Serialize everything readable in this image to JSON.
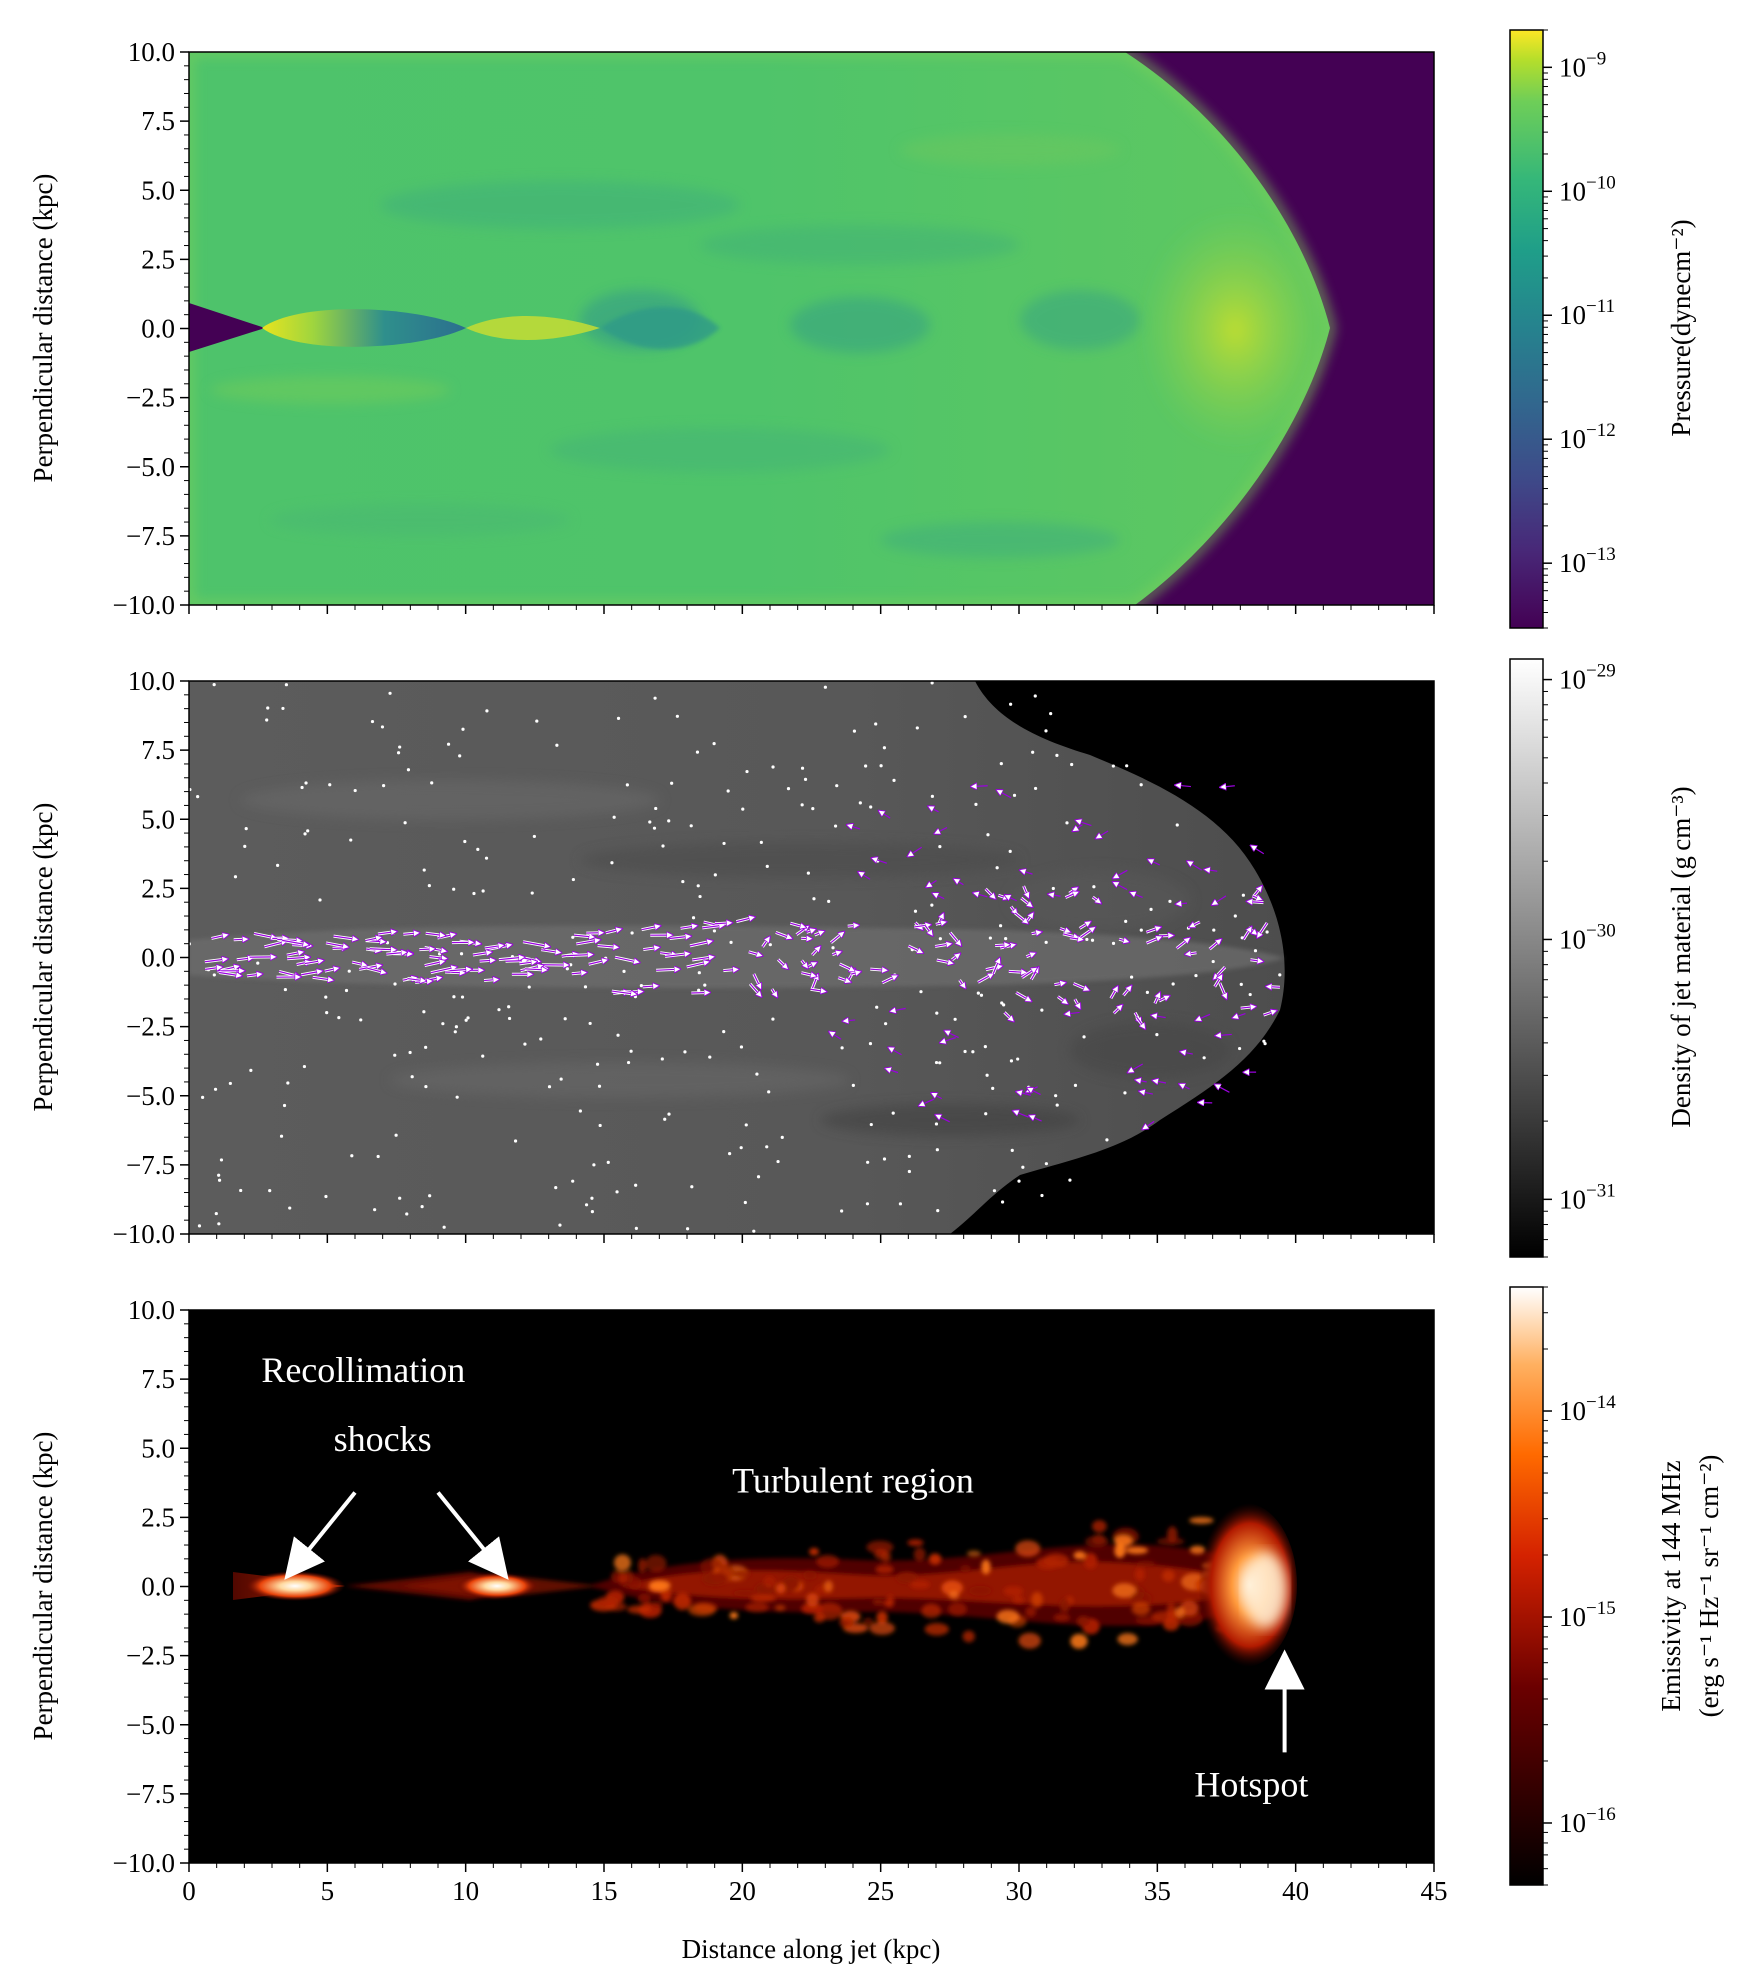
{
  "chart_data": [
    {
      "type": "heatmap",
      "panel": "pressure",
      "xlim": [
        0,
        45
      ],
      "ylim": [
        -10.0,
        10.0
      ],
      "ylabel": "Perpendicular distance (kpc)",
      "xlabel": "",
      "yticks": [
        "10.0",
        "7.5",
        "5.0",
        "2.5",
        "0.0",
        "−2.5",
        "−5.0",
        "−7.5",
        "−10.0"
      ],
      "ytick_values": [
        10,
        7.5,
        5,
        2.5,
        0,
        -2.5,
        -5,
        -7.5,
        -10
      ],
      "colorbar": {
        "label": "Pressure(dynecm⁻²)",
        "scale": "log",
        "colormap": "viridis",
        "range": [
          3e-14,
          2e-09
        ],
        "ticks": [
          {
            "base": "10",
            "exp": "−9",
            "value": 1e-09
          },
          {
            "base": "10",
            "exp": "−10",
            "value": 1e-10
          },
          {
            "base": "10",
            "exp": "−11",
            "value": 1e-11
          },
          {
            "base": "10",
            "exp": "−12",
            "value": 1e-12
          },
          {
            "base": "10",
            "exp": "−13",
            "value": 1e-13
          }
        ]
      },
      "features": {
        "bow_shock_tip_x": 41.3,
        "shock_front_top_x": 34.0,
        "shock_front_bottom_x": 34.0,
        "recollimation_shocks_x": [
          3.0,
          11.5
        ]
      }
    },
    {
      "type": "heatmap",
      "panel": "density",
      "xlim": [
        0,
        45
      ],
      "ylim": [
        -10.0,
        10.0
      ],
      "ylabel": "Perpendicular distance (kpc)",
      "xlabel": "",
      "yticks": [
        "10.0",
        "7.5",
        "5.0",
        "2.5",
        "0.0",
        "−2.5",
        "−5.0",
        "−7.5",
        "−10.0"
      ],
      "ytick_values": [
        10,
        7.5,
        5,
        2.5,
        0,
        -2.5,
        -5,
        -7.5,
        -10
      ],
      "colorbar": {
        "label": "Density of jet material (g cm⁻³)",
        "scale": "log",
        "colormap": "gray",
        "range": [
          6e-32,
          1.2e-29
        ],
        "ticks": [
          {
            "base": "10",
            "exp": "−29",
            "value": 1e-29
          },
          {
            "base": "10",
            "exp": "−30",
            "value": 1e-30
          },
          {
            "base": "10",
            "exp": "−31",
            "value": 1e-31
          }
        ]
      },
      "features": {
        "cocoon_extent_x": 40.0,
        "tracer_particles": "white dots",
        "velocity_vectors": "purple arrows"
      }
    },
    {
      "type": "heatmap",
      "panel": "emissivity",
      "xlim": [
        0,
        45
      ],
      "ylim": [
        -10.0,
        10.0
      ],
      "ylabel": "Perpendicular distance (kpc)",
      "xlabel": "Distance along jet (kpc)",
      "xticks": [
        "0",
        "5",
        "10",
        "15",
        "20",
        "25",
        "30",
        "35",
        "40",
        "45"
      ],
      "xtick_values": [
        0,
        5,
        10,
        15,
        20,
        25,
        30,
        35,
        40,
        45
      ],
      "yticks": [
        "10.0",
        "7.5",
        "5.0",
        "2.5",
        "0.0",
        "−2.5",
        "−5.0",
        "−7.5",
        "−10.0"
      ],
      "ytick_values": [
        10,
        7.5,
        5,
        2.5,
        0,
        -2.5,
        -5,
        -7.5,
        -10
      ],
      "colorbar": {
        "label_line1": "Emissivity at 144 MHz",
        "label_line2": "(erg s⁻¹ Hz⁻¹ sr⁻¹ cm⁻²)",
        "scale": "log",
        "colormap": "gist_heat",
        "range": [
          5e-17,
          4e-14
        ],
        "ticks": [
          {
            "base": "10",
            "exp": "−14",
            "value": 1e-14
          },
          {
            "base": "10",
            "exp": "−15",
            "value": 1e-15
          },
          {
            "base": "10",
            "exp": "−16",
            "value": 1e-16
          }
        ]
      },
      "annotations": [
        {
          "text": "Recollimation",
          "x": 6.3,
          "y": 7.4
        },
        {
          "text": "shocks",
          "x": 7.0,
          "y": 4.9
        },
        {
          "text": "Turbulent region",
          "x": 24.0,
          "y": 3.4
        },
        {
          "text": "Hotspot",
          "x": 38.4,
          "y": -7.6
        }
      ],
      "arrows": [
        {
          "from": [
            6.0,
            3.4
          ],
          "to": [
            3.9,
            0.8
          ]
        },
        {
          "from": [
            9.0,
            3.4
          ],
          "to": [
            11.1,
            0.8
          ]
        },
        {
          "from": [
            39.6,
            -6.0
          ],
          "to": [
            39.6,
            -3.0
          ]
        }
      ]
    }
  ]
}
